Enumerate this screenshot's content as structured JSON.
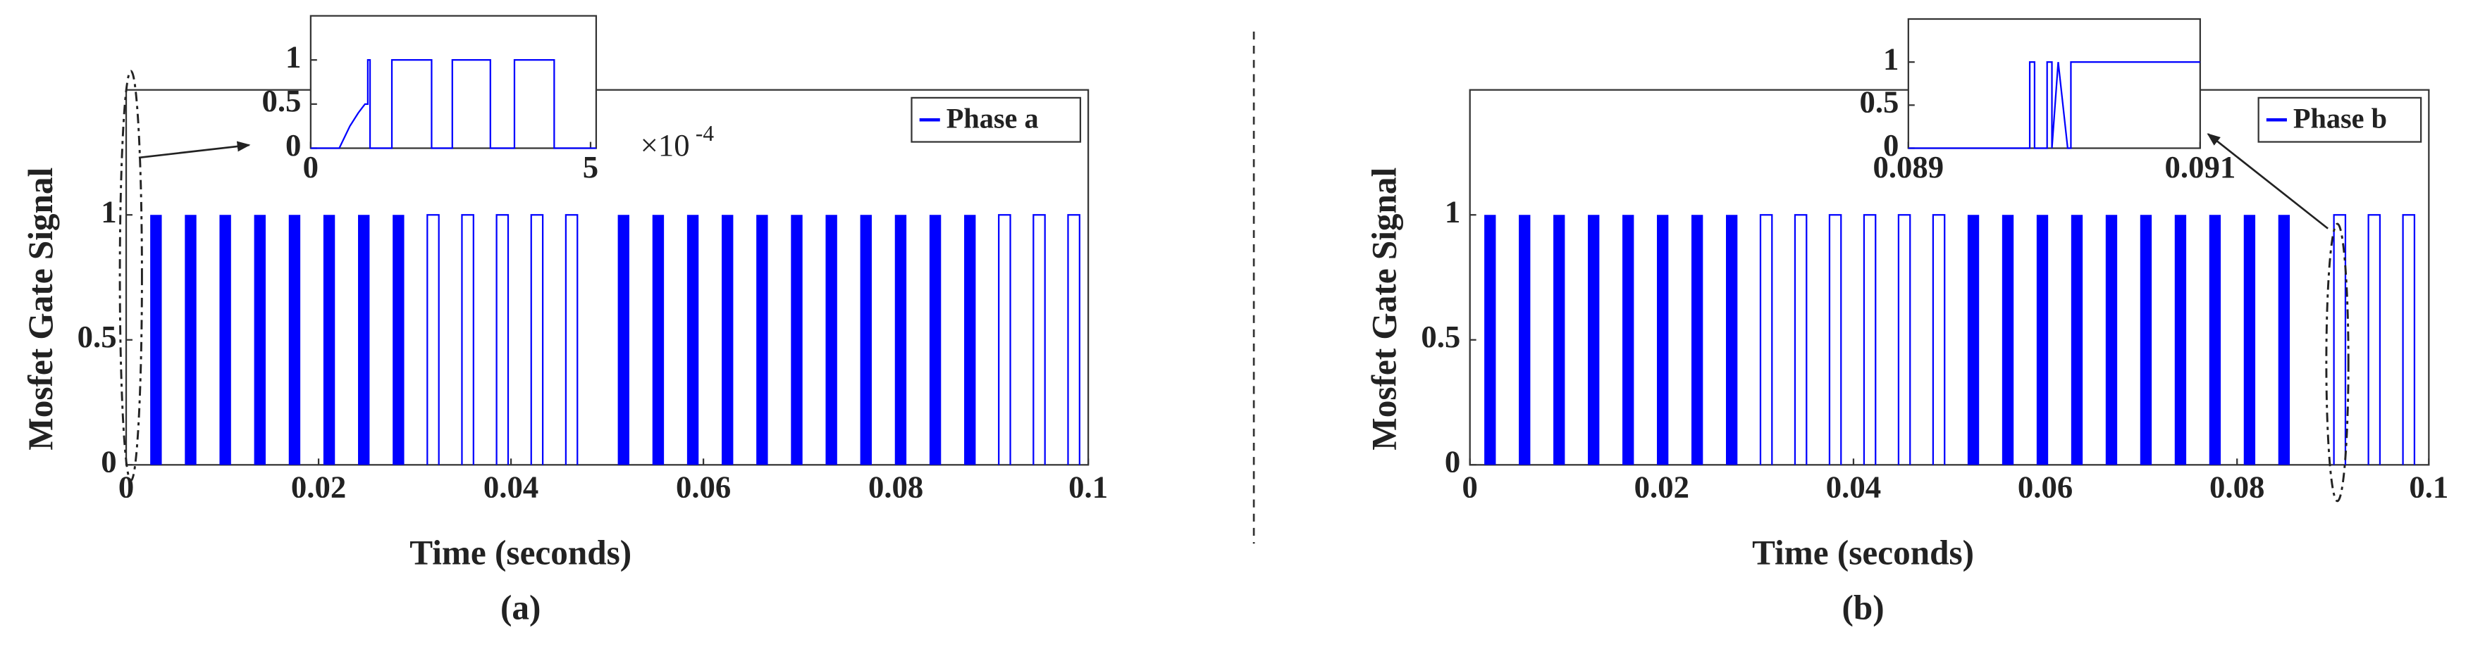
{
  "chart_data": [
    {
      "type": "pulse",
      "panel_label": "(a)",
      "xlabel": "Time (seconds)",
      "ylabel": "Mosfet Gate Signal",
      "xlim": [
        0,
        0.1
      ],
      "ylim": [
        0,
        1.5
      ],
      "xticks": [
        0,
        0.02,
        0.04,
        0.06,
        0.08,
        0.1
      ],
      "yticks": [
        0,
        0.5,
        1
      ],
      "legend": "upper right",
      "series": [
        {
          "name": "Phase a",
          "color": "#0000ff",
          "level": 1,
          "pulses": [
            {
              "start": 0.0025,
              "end": 0.0037,
              "filled": true
            },
            {
              "start": 0.0061,
              "end": 0.0073,
              "filled": true
            },
            {
              "start": 0.0097,
              "end": 0.0109,
              "filled": true
            },
            {
              "start": 0.0133,
              "end": 0.0145,
              "filled": true
            },
            {
              "start": 0.0169,
              "end": 0.0181,
              "filled": true
            },
            {
              "start": 0.0205,
              "end": 0.0217,
              "filled": true
            },
            {
              "start": 0.0241,
              "end": 0.0253,
              "filled": true
            },
            {
              "start": 0.0277,
              "end": 0.0289,
              "filled": true
            },
            {
              "start": 0.0313,
              "end": 0.0325,
              "filled": false
            },
            {
              "start": 0.0349,
              "end": 0.0361,
              "filled": false
            },
            {
              "start": 0.0385,
              "end": 0.0397,
              "filled": false
            },
            {
              "start": 0.0421,
              "end": 0.0433,
              "filled": false
            },
            {
              "start": 0.0457,
              "end": 0.0469,
              "filled": false
            },
            {
              "start": 0.0511,
              "end": 0.0523,
              "filled": true
            },
            {
              "start": 0.0547,
              "end": 0.0559,
              "filled": true
            },
            {
              "start": 0.0583,
              "end": 0.0595,
              "filled": true
            },
            {
              "start": 0.0619,
              "end": 0.0631,
              "filled": true
            },
            {
              "start": 0.0655,
              "end": 0.0667,
              "filled": true
            },
            {
              "start": 0.0691,
              "end": 0.0703,
              "filled": true
            },
            {
              "start": 0.0727,
              "end": 0.0739,
              "filled": true
            },
            {
              "start": 0.0763,
              "end": 0.0775,
              "filled": true
            },
            {
              "start": 0.0799,
              "end": 0.0811,
              "filled": true
            },
            {
              "start": 0.0835,
              "end": 0.0847,
              "filled": true
            },
            {
              "start": 0.0871,
              "end": 0.0883,
              "filled": true
            },
            {
              "start": 0.0907,
              "end": 0.0919,
              "filled": false
            },
            {
              "start": 0.0943,
              "end": 0.0955,
              "filled": false
            },
            {
              "start": 0.0979,
              "end": 0.0991,
              "filled": false
            }
          ]
        }
      ],
      "inset": {
        "type": "line",
        "xlim": [
          0,
          0.00051
        ],
        "ylim": [
          0,
          1.5
        ],
        "xticks": [
          0,
          {
            "value": 0.0005,
            "label": "5"
          }
        ],
        "yticks": [
          0,
          0.5,
          1
        ],
        "x_exponent": {
          "base": "×10",
          "power": "-4"
        },
        "color": "#0000ff",
        "x": [
          0,
          5.1e-05,
          7e-05,
          8.5e-05,
          9.7e-05,
          0.000102,
          0.000102,
          0.000106,
          0.000106,
          0.000145,
          0.000145,
          0.000216,
          0.000216,
          0.000253,
          0.000253,
          0.000321,
          0.000321,
          0.000364,
          0.000364,
          0.000435,
          0.000435,
          0.00051
        ],
        "values": [
          0,
          0,
          0.25,
          0.4,
          0.5,
          0.5,
          1,
          1,
          0,
          0,
          1,
          1,
          0,
          0,
          1,
          1,
          0,
          0,
          1,
          1,
          0,
          0
        ]
      }
    },
    {
      "type": "pulse",
      "panel_label": "(b)",
      "xlabel": "Time (seconds)",
      "ylabel": "Mosfet Gate Signal",
      "xlim": [
        0,
        0.1
      ],
      "ylim": [
        0,
        1.5
      ],
      "xticks": [
        0,
        0.02,
        0.04,
        0.06,
        0.08,
        0.1
      ],
      "yticks": [
        0,
        0.5,
        1
      ],
      "legend": "upper right",
      "series": [
        {
          "name": "Phase b",
          "color": "#0000ff",
          "level": 1,
          "pulses": [
            {
              "start": 0.0015,
              "end": 0.0027,
              "filled": true
            },
            {
              "start": 0.0051,
              "end": 0.0063,
              "filled": true
            },
            {
              "start": 0.0087,
              "end": 0.0099,
              "filled": true
            },
            {
              "start": 0.0123,
              "end": 0.0135,
              "filled": true
            },
            {
              "start": 0.0159,
              "end": 0.0171,
              "filled": true
            },
            {
              "start": 0.0195,
              "end": 0.0207,
              "filled": true
            },
            {
              "start": 0.0231,
              "end": 0.0243,
              "filled": true
            },
            {
              "start": 0.0267,
              "end": 0.0279,
              "filled": true
            },
            {
              "start": 0.0303,
              "end": 0.0315,
              "filled": false
            },
            {
              "start": 0.0339,
              "end": 0.0351,
              "filled": false
            },
            {
              "start": 0.0375,
              "end": 0.0387,
              "filled": false
            },
            {
              "start": 0.0411,
              "end": 0.0423,
              "filled": false
            },
            {
              "start": 0.0447,
              "end": 0.0459,
              "filled": false
            },
            {
              "start": 0.0483,
              "end": 0.0495,
              "filled": false
            },
            {
              "start": 0.0519,
              "end": 0.0531,
              "filled": true
            },
            {
              "start": 0.0555,
              "end": 0.0567,
              "filled": true
            },
            {
              "start": 0.0591,
              "end": 0.0603,
              "filled": true
            },
            {
              "start": 0.0627,
              "end": 0.0639,
              "filled": true
            },
            {
              "start": 0.0663,
              "end": 0.0675,
              "filled": true
            },
            {
              "start": 0.0699,
              "end": 0.0711,
              "filled": true
            },
            {
              "start": 0.0735,
              "end": 0.0747,
              "filled": true
            },
            {
              "start": 0.0771,
              "end": 0.0783,
              "filled": true
            },
            {
              "start": 0.0807,
              "end": 0.0819,
              "filled": true
            },
            {
              "start": 0.0843,
              "end": 0.0855,
              "filled": true
            },
            {
              "start": 0.0901,
              "end": 0.0913,
              "filled": false
            },
            {
              "start": 0.0937,
              "end": 0.0949,
              "filled": false
            },
            {
              "start": 0.0973,
              "end": 0.0985,
              "filled": false
            }
          ]
        }
      ],
      "inset": {
        "type": "line",
        "xlim": [
          0.089,
          0.091
        ],
        "ylim": [
          0,
          1.5
        ],
        "xticks": [
          0.089,
          0.091
        ],
        "yticks": [
          0,
          0.5,
          1
        ],
        "color": "#0000ff",
        "x": [
          0.089,
          0.089832,
          0.089832,
          0.089865,
          0.089865,
          0.089951,
          0.089951,
          0.089984,
          0.089984,
          0.090027,
          0.090092,
          0.090114,
          0.090114,
          0.091
        ],
        "values": [
          0,
          0,
          1,
          1,
          0,
          0,
          1,
          1,
          0,
          1,
          0,
          0,
          1,
          1
        ]
      }
    }
  ]
}
